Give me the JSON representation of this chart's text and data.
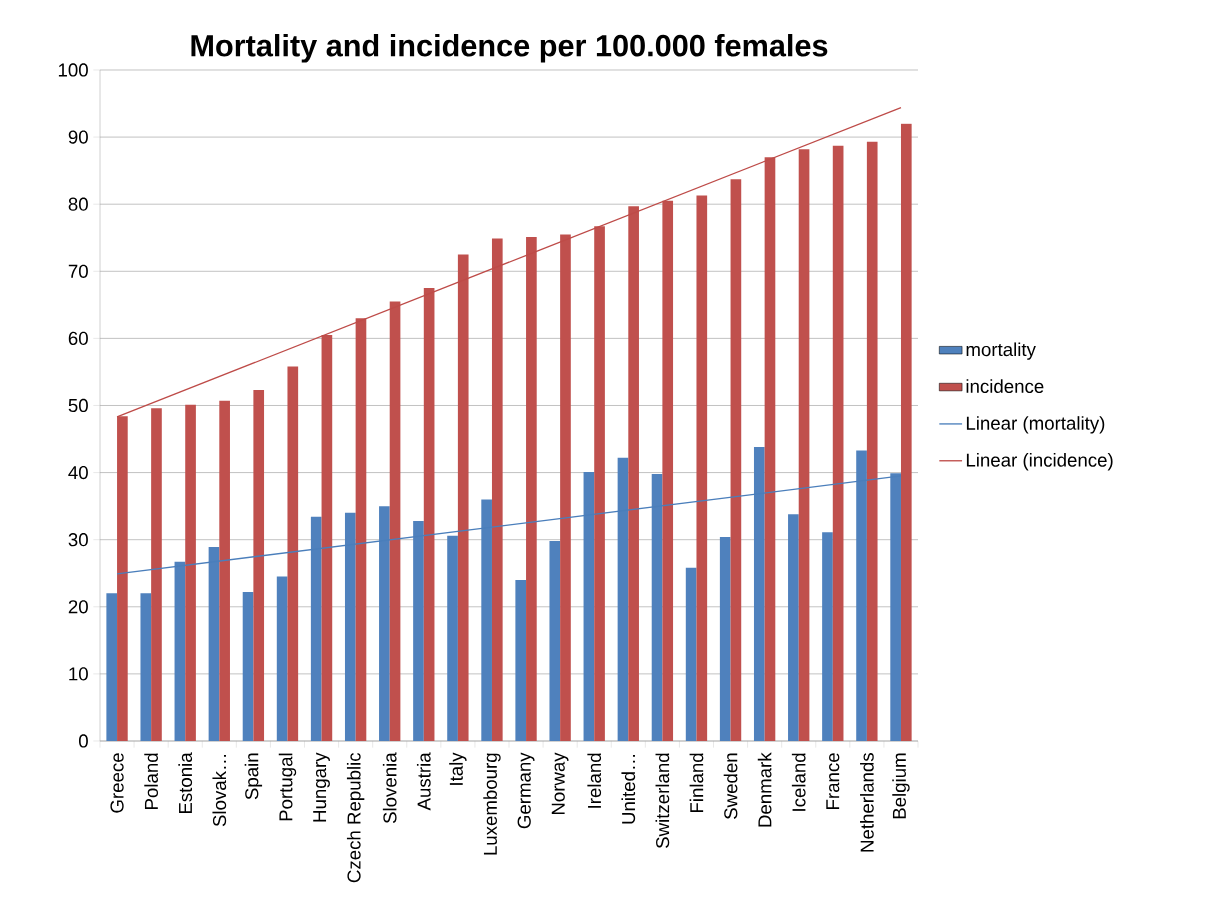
{
  "chart_data": {
    "type": "bar",
    "title": "Mortality and incidence per 100.000 females",
    "categories": [
      "Greece",
      "Poland",
      "Estonia",
      "Slovak…",
      "Spain",
      "Portugal",
      "Hungary",
      "Czech Republic",
      "Slovenia",
      "Austria",
      "Italy",
      "Luxembourg",
      "Germany",
      "Norway",
      "Ireland",
      "United…",
      "Switzerland",
      "Finland",
      "Sweden",
      "Denmark",
      "Iceland",
      "France",
      "Netherlands",
      "Belgium"
    ],
    "series": [
      {
        "name": "mortality",
        "color": "#4f81bd",
        "values": [
          22.0,
          22.0,
          26.7,
          28.9,
          22.2,
          24.5,
          33.4,
          34.0,
          35.0,
          32.8,
          30.6,
          36.0,
          24.0,
          29.8,
          40.1,
          42.2,
          39.8,
          25.8,
          30.4,
          43.8,
          33.8,
          31.1,
          43.3,
          39.9
        ]
      },
      {
        "name": "incidence",
        "color": "#c0504d",
        "values": [
          48.4,
          49.6,
          50.1,
          50.7,
          52.3,
          55.8,
          60.5,
          63.0,
          65.5,
          67.5,
          72.5,
          74.9,
          75.1,
          75.5,
          76.7,
          79.7,
          80.5,
          81.3,
          83.7,
          87.0,
          88.2,
          88.7,
          89.3,
          92.0
        ]
      },
      {
        "name": "Linear (mortality)",
        "type": "line",
        "color": "#4a7ebb",
        "values": [
          24.9,
          null,
          null,
          null,
          null,
          null,
          null,
          null,
          null,
          null,
          null,
          null,
          null,
          null,
          null,
          null,
          null,
          null,
          null,
          null,
          null,
          null,
          null,
          39.5
        ]
      },
      {
        "name": "Linear (incidence)",
        "type": "line",
        "color": "#be4b48",
        "values": [
          48.3,
          null,
          null,
          null,
          null,
          null,
          null,
          null,
          null,
          null,
          null,
          null,
          null,
          null,
          null,
          null,
          null,
          null,
          null,
          null,
          null,
          null,
          null,
          94.4
        ]
      }
    ],
    "ylim": [
      0,
      100
    ],
    "yticks": [
      0,
      10,
      20,
      30,
      40,
      50,
      60,
      70,
      80,
      90,
      100
    ],
    "grid": "y",
    "legend": "right"
  }
}
